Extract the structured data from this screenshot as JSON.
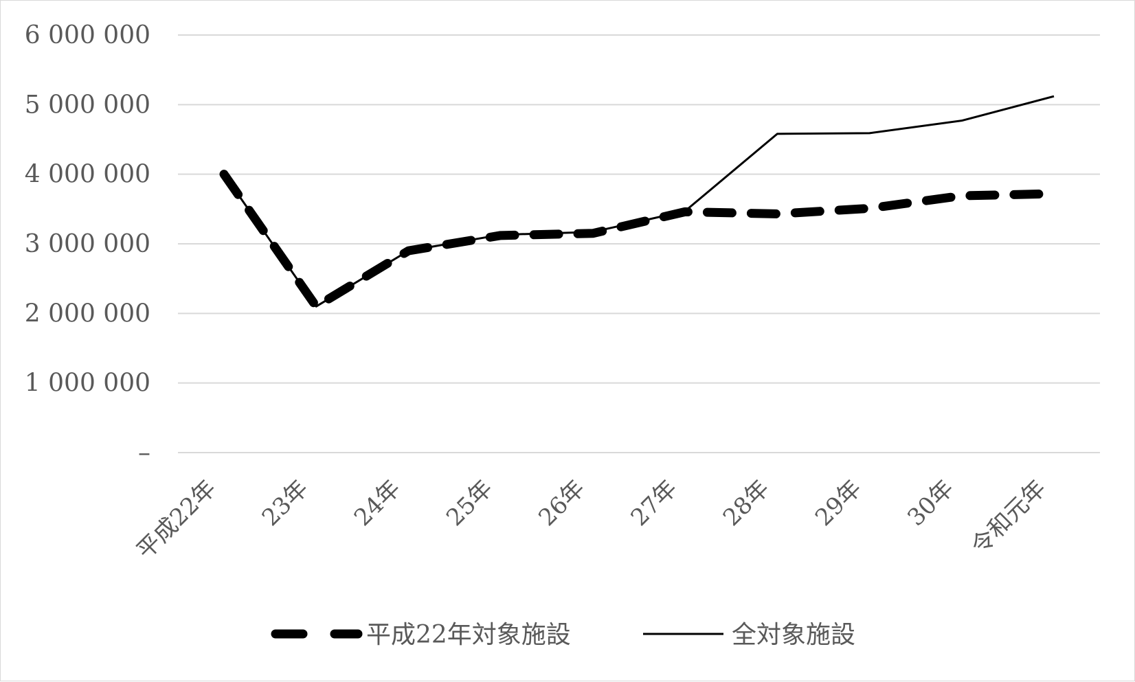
{
  "chart_data": {
    "type": "line",
    "categories": [
      "平成22年",
      "23年",
      "24年",
      "25年",
      "26年",
      "27年",
      "28年",
      "29年",
      "30年",
      "令和元年"
    ],
    "series": [
      {
        "name": "平成22年対象施設",
        "style": "dashed-thick",
        "color": "#000000",
        "values": [
          4000000,
          2100000,
          2900000,
          3120000,
          3150000,
          3460000,
          3430000,
          3510000,
          3690000,
          3720000
        ]
      },
      {
        "name": "全対象施設",
        "style": "solid-thin",
        "color": "#000000",
        "values": [
          4000000,
          2100000,
          2900000,
          3130000,
          3170000,
          3470000,
          4580000,
          4590000,
          4770000,
          5120000
        ]
      }
    ],
    "y_ticks": [
      "6 000 000",
      "5 000 000",
      "4 000 000",
      "3 000 000",
      "2 000 000",
      "1 000 000",
      "–"
    ],
    "ylim": [
      0,
      6000000
    ],
    "grid": true,
    "grid_color": "#d9d9d9",
    "legend_position": "bottom",
    "title": "",
    "xlabel": "",
    "ylabel": ""
  }
}
